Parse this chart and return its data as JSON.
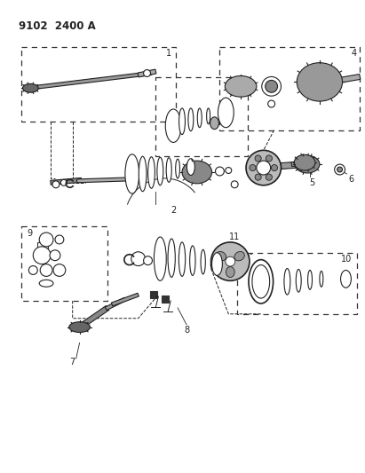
{
  "title": "9102  2400 A",
  "bg_color": "#ffffff",
  "line_color": "#222222",
  "gray_fill": "#888888",
  "light_gray": "#cccccc",
  "dark_gray": "#555555"
}
